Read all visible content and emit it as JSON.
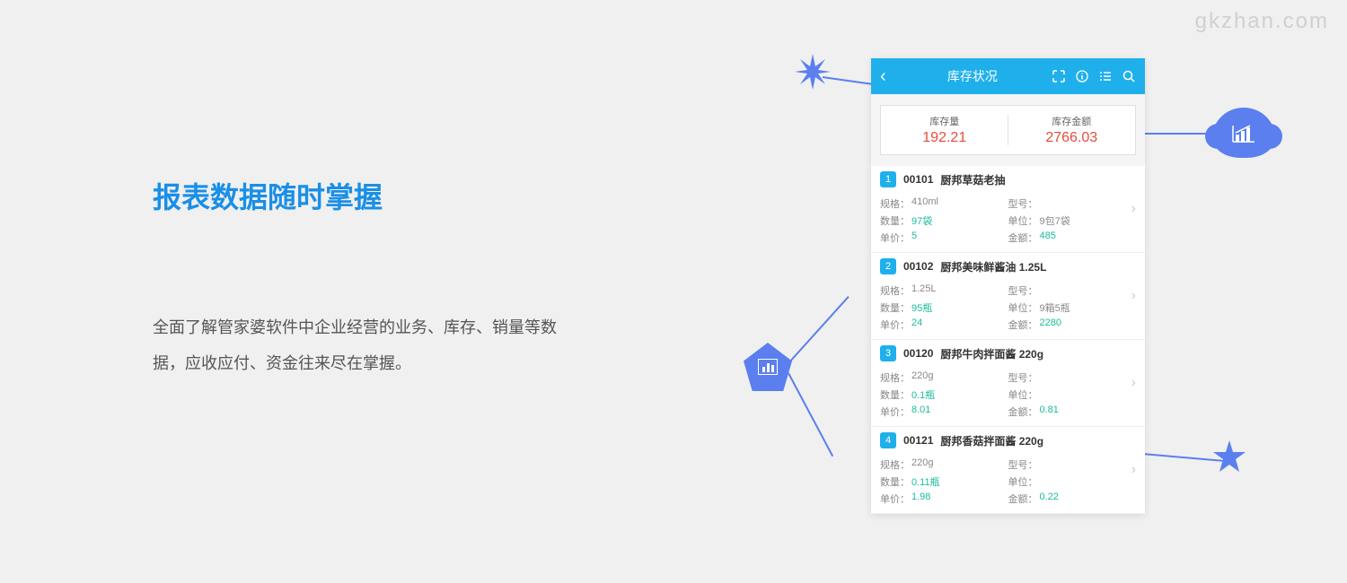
{
  "watermark": "gkzhan.com",
  "heading": "报表数据随时掌握",
  "description": "全面了解管家婆软件中企业经营的业务、库存、销量等数据，应收应付、资金往来尽在掌握。",
  "phone": {
    "title": "库存状况",
    "summary": {
      "stock_label": "库存量",
      "stock_value": "192.21",
      "amount_label": "库存金额",
      "amount_value": "2766.03"
    },
    "labels": {
      "spec": "规格：",
      "model": "型号：",
      "qty": "数量：",
      "unit": "单位：",
      "price": "单价：",
      "amount": "金额："
    },
    "items": [
      {
        "num": "1",
        "code": "00101",
        "name": "厨邦草菇老抽",
        "spec": "410ml",
        "model": "",
        "qty": "97袋",
        "unit": "9包7袋",
        "price": "5",
        "amount": "485"
      },
      {
        "num": "2",
        "code": "00102",
        "name": "厨邦美味鲜酱油 1.25L",
        "spec": "1.25L",
        "model": "",
        "qty": "95瓶",
        "unit": "9箱5瓶",
        "price": "24",
        "amount": "2280"
      },
      {
        "num": "3",
        "code": "00120",
        "name": "厨邦牛肉拌面酱 220g",
        "spec": "220g",
        "model": "",
        "qty": "0.1瓶",
        "unit": "",
        "price": "8.01",
        "amount": "0.81"
      },
      {
        "num": "4",
        "code": "00121",
        "name": "厨邦香菇拌面酱 220g",
        "spec": "220g",
        "model": "",
        "qty": "0.11瓶",
        "unit": "",
        "price": "1.98",
        "amount": "0.22"
      }
    ]
  },
  "colors": {
    "accent": "#1fb0ec",
    "heading": "#1a8fe6",
    "value_red": "#e74c3c",
    "value_teal": "#1abc9c",
    "deco_blue": "#5b7fef",
    "background": "#f0f0f0"
  }
}
